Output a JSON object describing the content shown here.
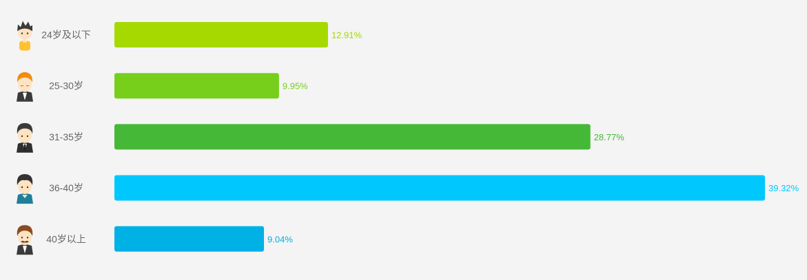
{
  "chart_data": {
    "type": "bar",
    "orientation": "horizontal",
    "categories": [
      "24岁及以下",
      "25-30岁",
      "31-35岁",
      "36-40岁",
      "40岁以上"
    ],
    "values": [
      12.91,
      9.95,
      28.77,
      39.32,
      9.04
    ],
    "value_labels": [
      "12.91%",
      "9.95%",
      "28.77%",
      "39.32%",
      "9.04%"
    ],
    "unit": "%",
    "xlim": [
      0,
      39.32
    ],
    "grid": false,
    "legend": "none",
    "bar_colors": [
      "#a6d900",
      "#77cf1b",
      "#46b837",
      "#00c8ff",
      "#00b1e6"
    ],
    "icons": [
      "young-man-yellow-shirt-icon",
      "man-orange-hair-suit-icon",
      "man-dark-hair-suit-icon",
      "man-teal-shirt-icon",
      "man-mustache-suit-icon"
    ]
  }
}
